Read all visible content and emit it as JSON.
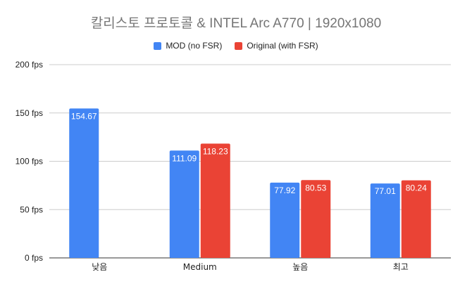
{
  "chart_data": {
    "type": "bar",
    "title": "칼리스토 프로토콜 & INTEL Arc A770 | 1920x1080",
    "categories": [
      "낮음",
      "Medium",
      "높음",
      "최고"
    ],
    "series": [
      {
        "name": "MOD (no FSR)",
        "color": "#4285f4",
        "values": [
          154.67,
          111.09,
          77.92,
          77.01
        ]
      },
      {
        "name": "Original (with FSR)",
        "color": "#ea4335",
        "values": [
          null,
          118.23,
          80.53,
          80.24
        ]
      }
    ],
    "value_labels": [
      [
        "154.67",
        "111.09",
        "77.92",
        "77.01"
      ],
      [
        null,
        "118.23",
        "80.53",
        "80.24"
      ]
    ],
    "yticks": [
      {
        "value": 0,
        "label": "0 fps"
      },
      {
        "value": 50,
        "label": "50 fps"
      },
      {
        "value": 100,
        "label": "100 fps"
      },
      {
        "value": 150,
        "label": "150 fps"
      },
      {
        "value": 200,
        "label": "200 fps"
      }
    ],
    "ylim": [
      0,
      200
    ],
    "xlabel": "",
    "ylabel": "",
    "grid": true,
    "legend_position": "top"
  }
}
